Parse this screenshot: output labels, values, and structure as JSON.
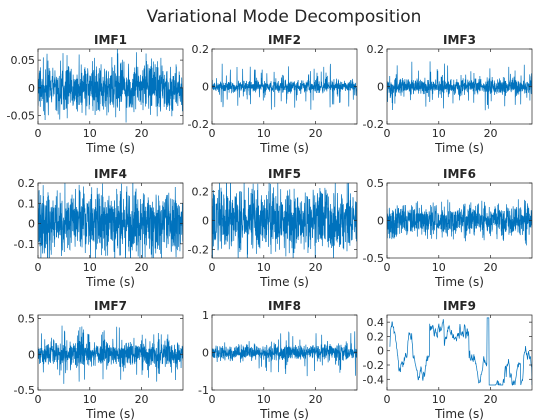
{
  "figure": {
    "suptitle": "Variational Mode Decomposition"
  },
  "chart_data": [
    {
      "type": "line",
      "title": "IMF1",
      "xlabel": "Time (s)",
      "xlim": [
        0,
        28
      ],
      "ylim": [
        -0.065,
        0.07
      ],
      "xticks": [
        0,
        10,
        20
      ],
      "xtick_labels": [
        "0",
        "10",
        "20"
      ],
      "yticks": [
        -0.05,
        0,
        0.05
      ],
      "ytick_labels": [
        "-0.05",
        "0",
        "0.05"
      ],
      "series": [
        {
          "color": "#0072BD",
          "kind": "burst",
          "amplitude": 0.065,
          "base": 0.02,
          "x_range": [
            0,
            28
          ]
        }
      ]
    },
    {
      "type": "line",
      "title": "IMF2",
      "xlabel": "Time (s)",
      "xlim": [
        0,
        28
      ],
      "ylim": [
        -0.2,
        0.2
      ],
      "xticks": [
        0,
        10,
        20
      ],
      "xtick_labels": [
        "0",
        "10",
        "20"
      ],
      "yticks": [
        -0.2,
        0,
        0.2
      ],
      "ytick_labels": [
        "-0.2",
        "0",
        "0.2"
      ],
      "series": [
        {
          "color": "#0072BD",
          "kind": "spiky",
          "amplitude": 0.13,
          "base": 0.015,
          "x_range": [
            0,
            28
          ]
        }
      ]
    },
    {
      "type": "line",
      "title": "IMF3",
      "xlabel": "Time (s)",
      "xlim": [
        0,
        28
      ],
      "ylim": [
        -0.2,
        0.2
      ],
      "xticks": [
        0,
        10,
        20
      ],
      "xtick_labels": [
        "0",
        "10",
        "20"
      ],
      "yticks": [
        -0.2,
        0,
        0.2
      ],
      "ytick_labels": [
        "-0.2",
        "0",
        "0.2"
      ],
      "series": [
        {
          "color": "#0072BD",
          "kind": "spiky",
          "amplitude": 0.14,
          "base": 0.02,
          "x_range": [
            0,
            28
          ]
        }
      ]
    },
    {
      "type": "line",
      "title": "IMF4",
      "xlabel": "Time (s)",
      "xlim": [
        0,
        28
      ],
      "ylim": [
        -0.17,
        0.2
      ],
      "xticks": [
        0,
        10,
        20
      ],
      "xtick_labels": [
        "0",
        "10",
        "20"
      ],
      "yticks": [
        -0.1,
        0,
        0.1,
        0.2
      ],
      "ytick_labels": [
        "-0.1",
        "0",
        "0.1",
        "0.2"
      ],
      "series": [
        {
          "color": "#0072BD",
          "kind": "dense",
          "amplitude": 0.17,
          "base": 0.06,
          "x_range": [
            0,
            28
          ]
        }
      ]
    },
    {
      "type": "line",
      "title": "IMF5",
      "xlabel": "Time (s)",
      "xlim": [
        0,
        28
      ],
      "ylim": [
        -0.26,
        0.26
      ],
      "xticks": [
        0,
        10,
        20
      ],
      "xtick_labels": [
        "0",
        "10",
        "20"
      ],
      "yticks": [
        -0.2,
        0,
        0.2
      ],
      "ytick_labels": [
        "-0.2",
        "0",
        "0.2"
      ],
      "series": [
        {
          "color": "#0072BD",
          "kind": "dense",
          "amplitude": 0.24,
          "base": 0.08,
          "x_range": [
            0,
            28
          ]
        }
      ]
    },
    {
      "type": "line",
      "title": "IMF6",
      "xlabel": "Time (s)",
      "xlim": [
        0,
        28
      ],
      "ylim": [
        -0.5,
        0.5
      ],
      "xticks": [
        0,
        10,
        20
      ],
      "xtick_labels": [
        "0",
        "10",
        "20"
      ],
      "yticks": [
        -0.5,
        0,
        0.5
      ],
      "ytick_labels": [
        "-0.5",
        "0",
        "0.5"
      ],
      "series": [
        {
          "color": "#0072BD",
          "kind": "burst",
          "amplitude": 0.32,
          "base": 0.1,
          "x_range": [
            0,
            28
          ]
        }
      ]
    },
    {
      "type": "line",
      "title": "IMF7",
      "xlabel": "Time (s)",
      "xlim": [
        0,
        28
      ],
      "ylim": [
        -0.5,
        0.55
      ],
      "xticks": [
        0,
        10,
        20
      ],
      "xtick_labels": [
        "0",
        "10",
        "20"
      ],
      "yticks": [
        -0.5,
        0,
        0.5
      ],
      "ytick_labels": [
        "-0.5",
        "0",
        "0.5"
      ],
      "series": [
        {
          "color": "#0072BD",
          "kind": "burst",
          "amplitude": 0.42,
          "base": 0.08,
          "x_range": [
            0,
            28
          ]
        }
      ]
    },
    {
      "type": "line",
      "title": "IMF8",
      "xlabel": "Time (s)",
      "xlim": [
        0,
        28
      ],
      "ylim": [
        -1,
        1
      ],
      "xticks": [
        0,
        10,
        20
      ],
      "xtick_labels": [
        "0",
        "10",
        "20"
      ],
      "yticks": [
        -1,
        0,
        1
      ],
      "ytick_labels": [
        "-1",
        "0",
        "1"
      ],
      "series": [
        {
          "color": "#0072BD",
          "kind": "sparse",
          "amplitude": 0.65,
          "base": 0.1,
          "x_range": [
            0,
            28
          ]
        }
      ]
    },
    {
      "type": "line",
      "title": "IMF9",
      "xlabel": "Time (s)",
      "xlim": [
        0,
        28
      ],
      "ylim": [
        -0.55,
        0.5
      ],
      "xticks": [
        0,
        10,
        20
      ],
      "xtick_labels": [
        "0",
        "10",
        "20"
      ],
      "yticks": [
        -0.4,
        -0.2,
        0,
        0.2,
        0.4
      ],
      "ytick_labels": [
        "-0.4",
        "-0.2",
        "0",
        "0.2",
        "0.4"
      ],
      "series": [
        {
          "color": "#0072BD",
          "kind": "slow",
          "amplitude": 0.3,
          "base": 0.05,
          "x_range": [
            0.5,
            28
          ]
        }
      ]
    }
  ]
}
